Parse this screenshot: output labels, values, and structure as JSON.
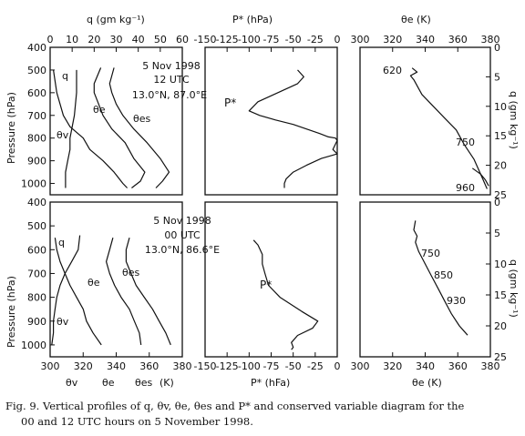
{
  "caption": {
    "line1": "Fig. 9. Vertical profiles of q, θv, θe, θes and P* and conserved variable diagram for the",
    "line2": "00 and 12 UTC hours on 5 November 1998."
  },
  "axis_labels": {
    "pressure": "Pressure (hPa)",
    "q_top": "q (gm kg⁻¹)",
    "q_right": "q (gm kg⁻¹)",
    "pstar_top": "P* (hPa)",
    "pstar_bottom": "P* (hFa)",
    "thetae": "θe (K)",
    "bottom_theta_v": "θv",
    "bottom_theta_e": "θe",
    "bottom_theta_es": "θes",
    "bottom_k": "(K)"
  },
  "chart_data": [
    {
      "panel": "top-left",
      "type": "line",
      "annotations": [
        "5 Nov 1998",
        "12 UTC",
        "13.0°N, 87.0°E"
      ],
      "y_axis": {
        "label": "Pressure (hPa)",
        "range": [
          1050,
          400
        ],
        "ticks": [
          400,
          500,
          600,
          700,
          800,
          900,
          1000
        ]
      },
      "top_axis": {
        "label": "q (gm kg⁻¹)",
        "range": [
          0,
          60
        ],
        "ticks": [
          0,
          10,
          20,
          30,
          40,
          50,
          60
        ]
      },
      "series": [
        {
          "name": "q",
          "x": [
            1.5,
            3,
            6,
            9,
            15,
            18,
            24,
            29,
            33,
            35
          ],
          "y": [
            500,
            600,
            700,
            750,
            800,
            850,
            900,
            950,
            1000,
            1020
          ]
        },
        {
          "name": "θv",
          "x": [
            12,
            12,
            11,
            10,
            9,
            9,
            8,
            7,
            7,
            7
          ],
          "y": [
            500,
            600,
            700,
            750,
            800,
            850,
            900,
            950,
            1000,
            1020
          ]
        },
        {
          "name": "θe",
          "x": [
            23,
            20,
            20,
            22,
            24,
            28,
            34,
            38,
            43,
            41,
            37
          ],
          "y": [
            490,
            560,
            600,
            650,
            700,
            760,
            820,
            890,
            950,
            990,
            1020
          ]
        },
        {
          "name": "θes",
          "x": [
            29,
            27,
            28,
            30,
            33,
            38,
            44,
            50,
            54,
            51,
            48
          ],
          "y": [
            490,
            560,
            600,
            650,
            700,
            760,
            820,
            890,
            950,
            990,
            1020
          ]
        }
      ]
    },
    {
      "panel": "top-middle",
      "type": "line",
      "label": "P*",
      "top_axis": {
        "label": "P* (hPa)",
        "range": [
          -150,
          0
        ],
        "ticks": [
          -150,
          -125,
          -100,
          -75,
          -50,
          -25,
          0
        ]
      },
      "series": [
        {
          "name": "P*",
          "x": [
            -45,
            -38,
            -45,
            -62,
            -90,
            -100,
            -88,
            -70,
            -50,
            -35,
            -20,
            -10,
            -2,
            0,
            -5,
            0,
            -18,
            -35,
            -50,
            -58,
            -60,
            -60
          ],
          "y": [
            500,
            530,
            560,
            590,
            640,
            680,
            700,
            720,
            740,
            760,
            780,
            795,
            800,
            810,
            850,
            870,
            890,
            920,
            950,
            980,
            1000,
            1020
          ]
        }
      ]
    },
    {
      "panel": "top-right",
      "type": "line",
      "top_axis": {
        "label": "θe (K)",
        "range": [
          300,
          380
        ],
        "ticks": [
          300,
          320,
          340,
          360,
          380
        ]
      },
      "right_axis": {
        "label": "q (gm kg⁻¹)",
        "range": [
          0,
          25
        ],
        "ticks": [
          0,
          5,
          10,
          15,
          20,
          25
        ]
      },
      "point_labels": [
        "620",
        "750",
        "960"
      ],
      "series": [
        {
          "name": "θe vs q",
          "x": [
            332,
            335,
            331,
            333,
            338,
            345,
            352,
            359,
            364,
            370,
            374,
            378
          ],
          "y": [
            3.5,
            4.2,
            4.8,
            5.5,
            8,
            10,
            12,
            14,
            16.5,
            19,
            21.5,
            24
          ]
        },
        {
          "name": "θe vs q (low levels)",
          "x": [
            369,
            374,
            377,
            379
          ],
          "y": [
            20.5,
            21.5,
            22.5,
            23.5
          ]
        }
      ]
    },
    {
      "panel": "bottom-left",
      "type": "line",
      "annotations": [
        "5 Nov 1998",
        "00 UTC",
        "13.0°N, 86.6°E"
      ],
      "y_axis": {
        "label": "Pressure (hPa)",
        "range": [
          1050,
          400
        ],
        "ticks": [
          400,
          500,
          600,
          700,
          800,
          900,
          1000
        ]
      },
      "x_axis": {
        "range": [
          300,
          380
        ],
        "ticks": [
          300,
          320,
          340,
          360,
          380
        ]
      },
      "series": [
        {
          "name": "q",
          "x": [
            303,
            304,
            306,
            309,
            312,
            316,
            320,
            322,
            326,
            331
          ],
          "y": [
            550,
            600,
            650,
            700,
            750,
            800,
            850,
            900,
            950,
            1000
          ]
        },
        {
          "name": "θv",
          "x": [
            318,
            317,
            313,
            309,
            306,
            304,
            303,
            302,
            302,
            301
          ],
          "y": [
            540,
            600,
            650,
            700,
            750,
            800,
            850,
            900,
            950,
            1000
          ]
        },
        {
          "name": "θe",
          "x": [
            338,
            336,
            334,
            336,
            339,
            343,
            348,
            351,
            354,
            355
          ],
          "y": [
            550,
            600,
            650,
            700,
            750,
            800,
            850,
            900,
            950,
            1000
          ]
        },
        {
          "name": "θes",
          "x": [
            348,
            346,
            346,
            349,
            352,
            357,
            362,
            366,
            370,
            373
          ],
          "y": [
            550,
            600,
            650,
            700,
            750,
            800,
            850,
            900,
            950,
            1000
          ]
        }
      ]
    },
    {
      "panel": "bottom-middle",
      "type": "line",
      "label": "P*",
      "x_axis": {
        "label": "P* (hFa)",
        "range": [
          -150,
          0
        ],
        "ticks": [
          -150,
          -125,
          -100,
          -75,
          -50,
          -25,
          0
        ]
      },
      "series": [
        {
          "name": "P*",
          "x": [
            -95,
            -90,
            -85,
            -85,
            -82,
            -78,
            -65,
            -40,
            -22,
            -28,
            -45,
            -52,
            -50,
            -52
          ],
          "y": [
            560,
            580,
            620,
            660,
            700,
            750,
            800,
            860,
            900,
            930,
            960,
            990,
            1010,
            1020
          ]
        }
      ]
    },
    {
      "panel": "bottom-right",
      "type": "line",
      "x_axis": {
        "label": "θe (K)",
        "range": [
          300,
          380
        ],
        "ticks": [
          300,
          320,
          340,
          360,
          380
        ]
      },
      "right_axis": {
        "label": "q (gm kg⁻¹)",
        "range": [
          0,
          25
        ],
        "ticks": [
          0,
          5,
          10,
          15,
          20,
          25
        ]
      },
      "point_labels": [
        "750",
        "850",
        "930"
      ],
      "series": [
        {
          "name": "θe vs q",
          "x": [
            334,
            333,
            335,
            334,
            336,
            340,
            344,
            348,
            352,
            356,
            361,
            366
          ],
          "y": [
            3,
            4.5,
            5.5,
            6.5,
            8,
            10,
            12,
            14,
            16,
            18,
            20,
            21.5
          ]
        }
      ]
    }
  ]
}
